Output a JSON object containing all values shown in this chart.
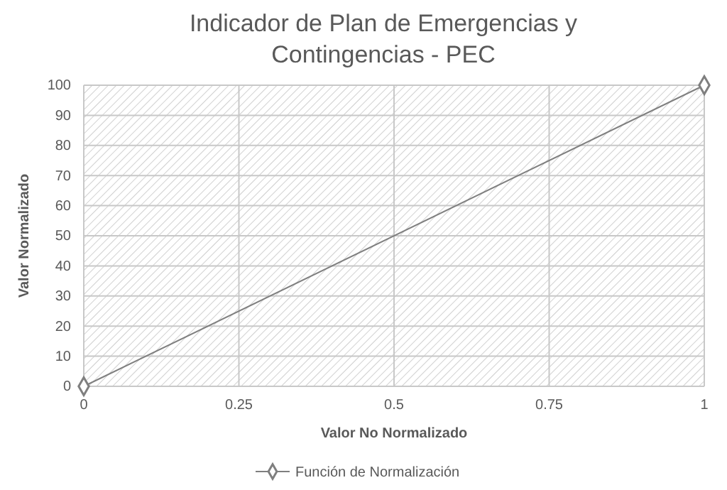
{
  "chart_data": {
    "type": "line",
    "title": "Indicador de Plan de Emergencias y Contingencias - PEC",
    "xlabel": "Valor No Normalizado",
    "ylabel": "Valor Normalizado",
    "x": [
      0,
      1
    ],
    "series": [
      {
        "name": "Función de Normalización",
        "color": "#7f7f7f",
        "values": [
          0,
          100
        ]
      }
    ],
    "xlim": [
      0,
      1
    ],
    "xticks": [
      0,
      0.25,
      0.5,
      0.75,
      1
    ],
    "ylim": [
      0,
      100
    ],
    "yticks": [
      0,
      10,
      20,
      30,
      40,
      50,
      60,
      70,
      80,
      90,
      100
    ],
    "grid": true,
    "legend": "bottom",
    "marker": "diamond",
    "line_style": "solid"
  }
}
